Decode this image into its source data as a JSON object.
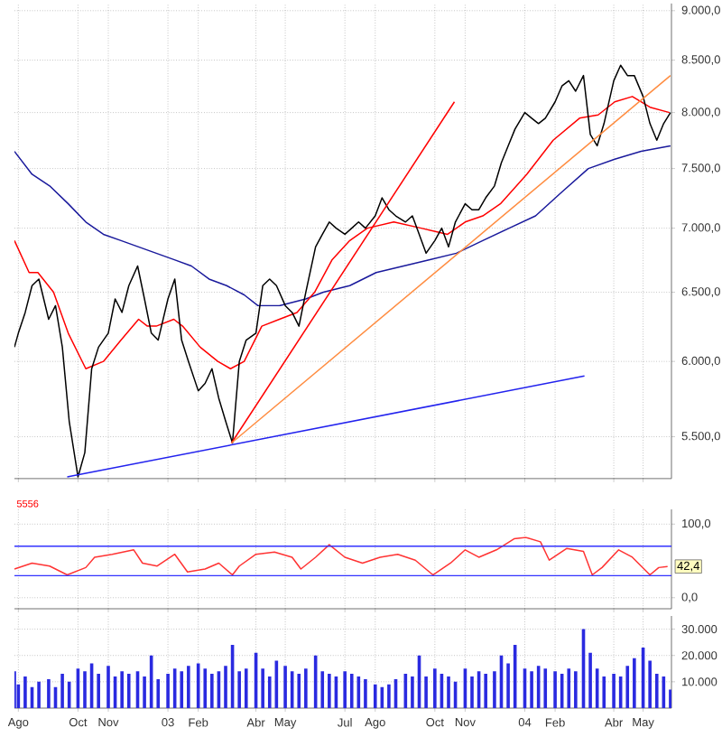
{
  "chart_data": [
    {
      "type": "line",
      "log": true,
      "grid": true,
      "tick_labels": "y",
      "xlim": [
        "2002-07-28",
        "2004-05-30"
      ],
      "xticks": [
        {
          "value": "2002-08-01",
          "label": null
        },
        {
          "value": "2002-10-01",
          "label": null
        },
        {
          "value": "2002-11-01",
          "label": null
        },
        {
          "value": "2003-01-01",
          "label": null
        },
        {
          "value": "2003-02-01",
          "label": null
        },
        {
          "value": "2003-04-01",
          "label": null
        },
        {
          "value": "2003-05-01",
          "label": null
        },
        {
          "value": "2003-07-01",
          "label": null
        },
        {
          "value": "2003-08-01",
          "label": null
        },
        {
          "value": "2003-10-01",
          "label": null
        },
        {
          "value": "2003-11-01",
          "label": null
        },
        {
          "value": "2004-01-01",
          "label": null
        },
        {
          "value": "2004-02-01",
          "label": null
        },
        {
          "value": "2004-04-01",
          "label": null
        },
        {
          "value": "2004-05-01",
          "label": null
        }
      ],
      "ylim": [
        5240,
        9075
      ],
      "yticks": [
        {
          "value": 5500,
          "label": "5.500,0"
        },
        {
          "value": 6000,
          "label": "6.000,0"
        },
        {
          "value": 6500,
          "label": "6.500,0"
        },
        {
          "value": 7000,
          "label": "7.000,0"
        },
        {
          "value": 7500,
          "label": "7.500,0"
        },
        {
          "value": 8000,
          "label": "8.000,0"
        },
        {
          "value": 8500,
          "label": "8.500,0"
        },
        {
          "value": 9000,
          "label": "9.000,0"
        }
      ],
      "x": [
        "2002-07-28",
        "2002-08-01",
        "2002-08-08",
        "2002-08-15",
        "2002-08-22",
        "2002-09-01",
        "2002-09-08",
        "2002-09-15",
        "2002-09-22",
        "2002-10-01",
        "2002-10-08",
        "2002-10-15",
        "2002-10-22",
        "2002-11-01",
        "2002-11-08",
        "2002-11-15",
        "2002-11-22",
        "2002-12-01",
        "2002-12-08",
        "2002-12-15",
        "2002-12-22",
        "2003-01-01",
        "2003-01-08",
        "2003-01-15",
        "2003-01-22",
        "2003-02-01",
        "2003-02-08",
        "2003-02-15",
        "2003-02-22",
        "2003-03-01",
        "2003-03-08",
        "2003-03-15",
        "2003-03-22",
        "2003-04-01",
        "2003-04-08",
        "2003-04-15",
        "2003-04-22",
        "2003-05-01",
        "2003-05-08",
        "2003-05-15",
        "2003-05-22",
        "2003-06-01",
        "2003-06-08",
        "2003-06-15",
        "2003-06-22",
        "2003-07-01",
        "2003-07-08",
        "2003-07-15",
        "2003-07-22",
        "2003-08-01",
        "2003-08-08",
        "2003-08-15",
        "2003-08-22",
        "2003-09-01",
        "2003-09-08",
        "2003-09-15",
        "2003-09-22",
        "2003-10-01",
        "2003-10-08",
        "2003-10-15",
        "2003-10-22",
        "2003-11-01",
        "2003-11-08",
        "2003-11-15",
        "2003-11-22",
        "2003-12-01",
        "2003-12-08",
        "2003-12-15",
        "2003-12-22",
        "2004-01-01",
        "2004-01-08",
        "2004-01-15",
        "2004-01-22",
        "2004-02-01",
        "2004-02-08",
        "2004-02-15",
        "2004-02-22",
        "2004-03-01",
        "2004-03-08",
        "2004-03-15",
        "2004-03-22",
        "2004-04-01",
        "2004-04-08",
        "2004-04-15",
        "2004-04-22",
        "2004-05-01",
        "2004-05-08",
        "2004-05-15",
        "2004-05-22",
        "2004-05-29"
      ],
      "series": [
        {
          "color": "#1a1a9c",
          "x": [
            "2002-07-28",
            "2002-08-15",
            "2002-09-02",
            "2002-09-21",
            "2002-10-09",
            "2002-10-27",
            "2002-11-14",
            "2002-12-02",
            "2002-12-20",
            "2003-01-07",
            "2003-01-25",
            "2003-02-12",
            "2003-03-02",
            "2003-03-20",
            "2003-04-03",
            "2003-04-25",
            "2003-05-22",
            "2003-06-09",
            "2003-07-06",
            "2003-08-02",
            "2003-08-30",
            "2003-09-26",
            "2003-10-23",
            "2003-11-19",
            "2003-12-16",
            "2004-01-12",
            "2004-02-08",
            "2004-03-06",
            "2004-04-02",
            "2004-04-29",
            "2004-05-29"
          ],
          "values": [
            7650,
            7450,
            7350,
            7200,
            7050,
            6950,
            6900,
            6850,
            6800,
            6750,
            6700,
            6600,
            6550,
            6480,
            6400,
            6400,
            6450,
            6500,
            6550,
            6650,
            6700,
            6750,
            6800,
            6900,
            7000,
            7100,
            7300,
            7500,
            7580,
            7650,
            7700
          ]
        },
        {
          "color": "#ff0000",
          "x": [
            "2002-07-28",
            "2002-08-12",
            "2002-08-21",
            "2002-09-06",
            "2002-09-21",
            "2002-10-09",
            "2002-10-27",
            "2002-11-14",
            "2002-12-02",
            "2002-12-11",
            "2002-12-20",
            "2003-01-07",
            "2003-01-16",
            "2003-02-03",
            "2003-02-21",
            "2003-03-06",
            "2003-03-20",
            "2003-04-07",
            "2003-04-25",
            "2003-05-13",
            "2003-05-31",
            "2003-06-18",
            "2003-07-06",
            "2003-07-24",
            "2003-08-20",
            "2003-09-17",
            "2003-10-14",
            "2003-11-01",
            "2003-11-19",
            "2003-12-07",
            "2004-01-03",
            "2004-01-30",
            "2004-02-26",
            "2004-03-16",
            "2004-04-02",
            "2004-04-20",
            "2004-05-08",
            "2004-05-28"
          ],
          "values": [
            6900,
            6650,
            6650,
            6500,
            6200,
            5950,
            6000,
            6150,
            6300,
            6250,
            6250,
            6300,
            6250,
            6100,
            6000,
            5950,
            6000,
            6250,
            6300,
            6350,
            6500,
            6750,
            6900,
            7000,
            7050,
            7000,
            6950,
            7050,
            7100,
            7200,
            7450,
            7750,
            7950,
            7980,
            8100,
            8150,
            8050,
            8000
          ]
        },
        {
          "color": "#000000",
          "values": [
            6100,
            6200,
            6350,
            6550,
            6600,
            6300,
            6400,
            6100,
            5600,
            5250,
            5400,
            5950,
            6100,
            6200,
            6450,
            6350,
            6550,
            6700,
            6450,
            6200,
            6150,
            6450,
            6600,
            6150,
            6000,
            5800,
            5850,
            5950,
            5750,
            5600,
            5460,
            6000,
            6150,
            6200,
            6550,
            6600,
            6550,
            6400,
            6350,
            6250,
            6500,
            6850,
            6950,
            7050,
            7000,
            6950,
            7000,
            7050,
            7000,
            7100,
            7250,
            7150,
            7100,
            7050,
            7100,
            6950,
            6800,
            6900,
            7000,
            6850,
            7050,
            7200,
            7150,
            7150,
            7250,
            7350,
            7550,
            7700,
            7850,
            8000,
            7950,
            7900,
            7950,
            8100,
            8250,
            8300,
            8200,
            8350,
            7800,
            7700,
            7900,
            8300,
            8450,
            8350,
            8350,
            8150,
            7900,
            7750,
            7900,
            8000
          ]
        },
        {
          "color": "#2222ee",
          "x": [
            "2002-09-20",
            "2004-03-02"
          ],
          "values": [
            5250,
            5900
          ]
        },
        {
          "color": "#ff0000",
          "x": [
            "2003-03-07",
            "2003-10-21"
          ],
          "values": [
            5460,
            8100
          ]
        },
        {
          "color": "#ff8c40",
          "x": [
            "2003-03-07",
            "2004-05-29"
          ],
          "values": [
            5460,
            8350
          ]
        }
      ]
    },
    {
      "type": "line",
      "grid": true,
      "tick_labels": "y",
      "color": "#ff3333",
      "xlim": [
        "2002-07-28",
        "2004-05-30"
      ],
      "xticks": [
        {
          "value": "2002-08-01",
          "label": null
        },
        {
          "value": "2002-10-01",
          "label": null
        },
        {
          "value": "2002-11-01",
          "label": null
        },
        {
          "value": "2003-01-01",
          "label": null
        },
        {
          "value": "2003-02-01",
          "label": null
        },
        {
          "value": "2003-04-01",
          "label": null
        },
        {
          "value": "2003-05-01",
          "label": null
        },
        {
          "value": "2003-07-01",
          "label": null
        },
        {
          "value": "2003-08-01",
          "label": null
        },
        {
          "value": "2003-10-01",
          "label": null
        },
        {
          "value": "2003-11-01",
          "label": null
        },
        {
          "value": "2004-01-01",
          "label": null
        },
        {
          "value": "2004-02-01",
          "label": null
        },
        {
          "value": "2004-04-01",
          "label": null
        },
        {
          "value": "2004-05-01",
          "label": null
        }
      ],
      "ylim": [
        -15,
        120
      ],
      "yticks": [
        {
          "value": 0,
          "label": "0,0"
        },
        {
          "value": 100,
          "label": "100,0"
        }
      ],
      "ref_lines": [
        {
          "axis": "y",
          "value": 70,
          "color": "#3333ff"
        },
        {
          "axis": "y",
          "value": 30,
          "color": "#3333ff"
        }
      ],
      "annotations": [
        "5556",
        {
          "text": "42,4",
          "x": "2004-05-26",
          "y": 42.4
        }
      ],
      "x": [
        "2002-07-28",
        "2002-08-15",
        "2002-09-02",
        "2002-09-20",
        "2002-10-09",
        "2002-10-18",
        "2002-11-05",
        "2002-11-27",
        "2002-12-06",
        "2002-12-21",
        "2003-01-08",
        "2003-01-21",
        "2003-02-08",
        "2003-02-22",
        "2003-03-08",
        "2003-03-15",
        "2003-04-01",
        "2003-04-20",
        "2003-05-08",
        "2003-05-17",
        "2003-06-01",
        "2003-06-15",
        "2003-07-01",
        "2003-07-19",
        "2003-08-06",
        "2003-08-24",
        "2003-09-11",
        "2003-09-29",
        "2003-10-17",
        "2003-11-01",
        "2003-11-15",
        "2003-12-03",
        "2003-12-21",
        "2004-01-02",
        "2004-01-17",
        "2004-01-26",
        "2004-02-13",
        "2004-03-01",
        "2004-03-10",
        "2004-03-20",
        "2004-04-06",
        "2004-04-20",
        "2004-04-29",
        "2004-05-08",
        "2004-05-17",
        "2004-05-26"
      ],
      "values": [
        39,
        47,
        43,
        31,
        41,
        55,
        59,
        65,
        47,
        43,
        59,
        35,
        39,
        47,
        31,
        43,
        59,
        62,
        55,
        39,
        55,
        72,
        55,
        47,
        55,
        59,
        51,
        31,
        47,
        65,
        55,
        65,
        80,
        82,
        76,
        51,
        67,
        63,
        31,
        41,
        65,
        55,
        43,
        31,
        41,
        42.4
      ]
    },
    {
      "type": "bar",
      "grid": true,
      "color": "#2a2ae0",
      "xlim": [
        "2002-07-28",
        "2004-05-30"
      ],
      "xticks": [
        {
          "value": "2002-08-01",
          "label": "Ago"
        },
        {
          "value": "2002-10-01",
          "label": "Oct"
        },
        {
          "value": "2002-11-01",
          "label": "Nov"
        },
        {
          "value": "2003-01-01",
          "label": "03"
        },
        {
          "value": "2003-02-01",
          "label": "Feb"
        },
        {
          "value": "2003-04-01",
          "label": "Abr"
        },
        {
          "value": "2003-05-01",
          "label": "May"
        },
        {
          "value": "2003-07-01",
          "label": "Jul"
        },
        {
          "value": "2003-08-01",
          "label": "Ago"
        },
        {
          "value": "2003-10-01",
          "label": "Oct"
        },
        {
          "value": "2003-11-01",
          "label": "Nov"
        },
        {
          "value": "2004-01-01",
          "label": "04"
        },
        {
          "value": "2004-02-01",
          "label": "Feb"
        },
        {
          "value": "2004-04-01",
          "label": "Abr"
        },
        {
          "value": "2004-05-01",
          "label": "May"
        }
      ],
      "ylim": [
        0,
        35000
      ],
      "yticks": [
        {
          "value": 10000,
          "label": "10.000"
        },
        {
          "value": 20000,
          "label": "20.000"
        },
        {
          "value": 30000,
          "label": "30.000"
        }
      ],
      "x": [
        "2002-07-28",
        "2002-08-01",
        "2002-08-08",
        "2002-08-15",
        "2002-08-22",
        "2002-09-01",
        "2002-09-08",
        "2002-09-15",
        "2002-09-22",
        "2002-10-01",
        "2002-10-08",
        "2002-10-15",
        "2002-10-22",
        "2002-11-01",
        "2002-11-08",
        "2002-11-15",
        "2002-11-22",
        "2002-12-01",
        "2002-12-08",
        "2002-12-15",
        "2002-12-22",
        "2003-01-01",
        "2003-01-08",
        "2003-01-15",
        "2003-01-22",
        "2003-02-01",
        "2003-02-08",
        "2003-02-15",
        "2003-02-22",
        "2003-03-01",
        "2003-03-08",
        "2003-03-15",
        "2003-03-22",
        "2003-04-01",
        "2003-04-08",
        "2003-04-15",
        "2003-04-22",
        "2003-05-01",
        "2003-05-08",
        "2003-05-15",
        "2003-05-22",
        "2003-06-01",
        "2003-06-08",
        "2003-06-15",
        "2003-06-22",
        "2003-07-01",
        "2003-07-08",
        "2003-07-15",
        "2003-07-22",
        "2003-08-01",
        "2003-08-08",
        "2003-08-15",
        "2003-08-22",
        "2003-09-01",
        "2003-09-08",
        "2003-09-15",
        "2003-09-22",
        "2003-10-01",
        "2003-10-08",
        "2003-10-15",
        "2003-10-22",
        "2003-11-01",
        "2003-11-08",
        "2003-11-15",
        "2003-11-22",
        "2003-12-01",
        "2003-12-08",
        "2003-12-15",
        "2003-12-22",
        "2004-01-01",
        "2004-01-08",
        "2004-01-15",
        "2004-01-22",
        "2004-02-01",
        "2004-02-08",
        "2004-02-15",
        "2004-02-22",
        "2004-03-01",
        "2004-03-08",
        "2004-03-15",
        "2004-03-22",
        "2004-04-01",
        "2004-04-08",
        "2004-04-15",
        "2004-04-22",
        "2004-05-01",
        "2004-05-08",
        "2004-05-15",
        "2004-05-22",
        "2004-05-29"
      ],
      "values": [
        14000,
        9000,
        12000,
        8000,
        10000,
        11000,
        8000,
        13000,
        10000,
        15000,
        14000,
        17000,
        13000,
        16000,
        12000,
        14000,
        13000,
        14000,
        12000,
        20000,
        11000,
        13000,
        15000,
        14000,
        16000,
        17000,
        15000,
        13000,
        14000,
        16000,
        24000,
        14000,
        15000,
        21000,
        15000,
        12000,
        18000,
        16000,
        14000,
        13000,
        15000,
        20000,
        14000,
        13000,
        12000,
        14000,
        13000,
        12000,
        11000,
        9000,
        8000,
        9000,
        11000,
        13000,
        12000,
        20000,
        12000,
        15000,
        13000,
        12000,
        10000,
        15000,
        12000,
        14000,
        13000,
        14000,
        20000,
        17000,
        24000,
        15000,
        14000,
        16000,
        15000,
        14000,
        13000,
        15000,
        14000,
        30000,
        21000,
        15000,
        12000,
        13000,
        12000,
        16000,
        19000,
        23000,
        18000,
        13000,
        12000,
        7000
      ]
    }
  ]
}
